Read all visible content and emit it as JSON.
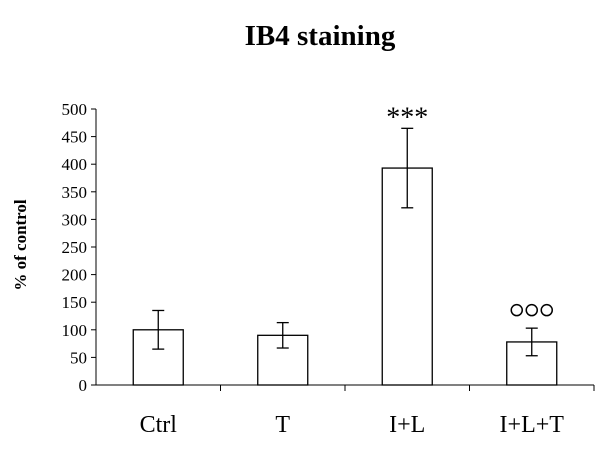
{
  "chart_data": {
    "type": "bar",
    "title": "IB4 staining",
    "ylabel": "% of control",
    "xlabel": "",
    "ylim": [
      0,
      500
    ],
    "yticks": [
      0,
      50,
      100,
      150,
      200,
      250,
      300,
      350,
      400,
      450,
      500
    ],
    "categories": [
      "Ctrl",
      "T",
      "I+L",
      "I+L+T"
    ],
    "values": [
      100,
      90,
      393,
      78
    ],
    "errors": [
      35,
      23,
      72,
      25
    ],
    "annotations": [
      "",
      "",
      "***",
      "ooo"
    ],
    "bar_fill": "#ffffff",
    "bar_stroke": "#000000",
    "grid": false,
    "legend": "none"
  }
}
